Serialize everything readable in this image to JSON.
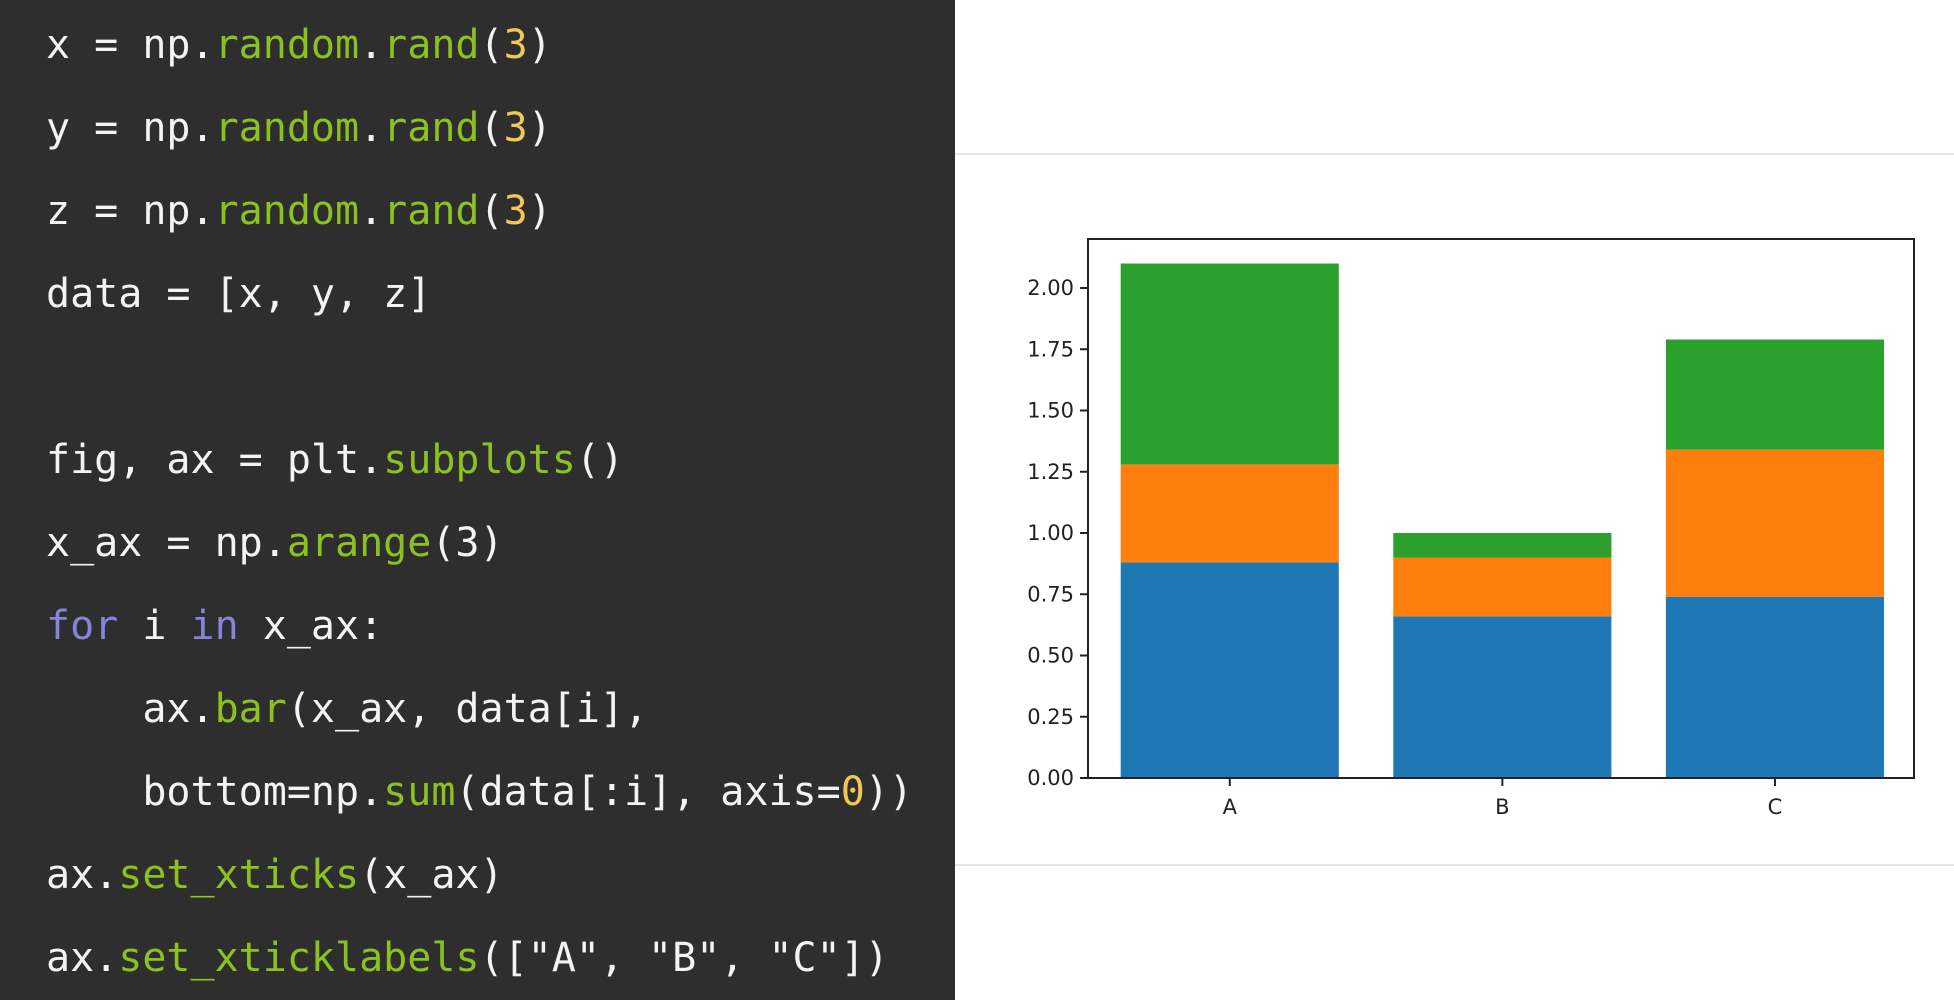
{
  "code": {
    "lines": [
      [
        {
          "t": "x = np.",
          "c": "plain"
        },
        {
          "t": "random",
          "c": "func"
        },
        {
          "t": ".",
          "c": "plain"
        },
        {
          "t": "rand",
          "c": "func"
        },
        {
          "t": "(",
          "c": "plain"
        },
        {
          "t": "3",
          "c": "num"
        },
        {
          "t": ")",
          "c": "plain"
        }
      ],
      [
        {
          "t": "y = np.",
          "c": "plain"
        },
        {
          "t": "random",
          "c": "func"
        },
        {
          "t": ".",
          "c": "plain"
        },
        {
          "t": "rand",
          "c": "func"
        },
        {
          "t": "(",
          "c": "plain"
        },
        {
          "t": "3",
          "c": "num"
        },
        {
          "t": ")",
          "c": "plain"
        }
      ],
      [
        {
          "t": "z = np.",
          "c": "plain"
        },
        {
          "t": "random",
          "c": "func"
        },
        {
          "t": ".",
          "c": "plain"
        },
        {
          "t": "rand",
          "c": "func"
        },
        {
          "t": "(",
          "c": "plain"
        },
        {
          "t": "3",
          "c": "num"
        },
        {
          "t": ")",
          "c": "plain"
        }
      ],
      [
        {
          "t": "data = [x, y, z]",
          "c": "plain"
        }
      ],
      [],
      [
        {
          "t": "fig, ax = plt.",
          "c": "plain"
        },
        {
          "t": "subplots",
          "c": "func"
        },
        {
          "t": "()",
          "c": "plain"
        }
      ],
      [
        {
          "t": "x_ax = np.",
          "c": "plain"
        },
        {
          "t": "arange",
          "c": "func"
        },
        {
          "t": "(3)",
          "c": "plain"
        }
      ],
      [
        {
          "t": "for",
          "c": "kw"
        },
        {
          "t": " i ",
          "c": "plain"
        },
        {
          "t": "in",
          "c": "kw"
        },
        {
          "t": " x_ax:",
          "c": "plain"
        }
      ],
      [
        {
          "t": "    ax.",
          "c": "plain"
        },
        {
          "t": "bar",
          "c": "func"
        },
        {
          "t": "(x_ax, data[i],",
          "c": "plain"
        }
      ],
      [
        {
          "t": "    bottom=np.",
          "c": "plain"
        },
        {
          "t": "sum",
          "c": "func"
        },
        {
          "t": "(data[:i], axis=",
          "c": "plain"
        },
        {
          "t": "0",
          "c": "num"
        },
        {
          "t": "))",
          "c": "plain"
        }
      ],
      [
        {
          "t": "ax.",
          "c": "plain"
        },
        {
          "t": "set_xticks",
          "c": "func"
        },
        {
          "t": "(x_ax)",
          "c": "plain"
        }
      ],
      [
        {
          "t": "ax.",
          "c": "plain"
        },
        {
          "t": "set_xticklabels",
          "c": "func"
        },
        {
          "t": "([\"A\", \"B\", \"C\"])",
          "c": "plain"
        }
      ]
    ]
  },
  "chart_data": {
    "type": "bar",
    "stacked": true,
    "categories": [
      "A",
      "B",
      "C"
    ],
    "series": [
      {
        "values": [
          0.88,
          0.66,
          0.74
        ],
        "color": "#1f77b4"
      },
      {
        "values": [
          0.4,
          0.24,
          0.6
        ],
        "color": "#ff7f0e"
      },
      {
        "values": [
          0.82,
          0.1,
          0.45
        ],
        "color": "#2ca02c"
      }
    ],
    "ylim": [
      0,
      2.2
    ],
    "yticks": [
      0.0,
      0.25,
      0.5,
      0.75,
      1.0,
      1.25,
      1.5,
      1.75,
      2.0
    ],
    "ytick_labels": [
      "0.00",
      "0.25",
      "0.50",
      "0.75",
      "1.00",
      "1.25",
      "1.50",
      "1.75",
      "2.00"
    ],
    "title": "",
    "xlabel": "",
    "ylabel": "",
    "grid": false,
    "legend": false
  }
}
